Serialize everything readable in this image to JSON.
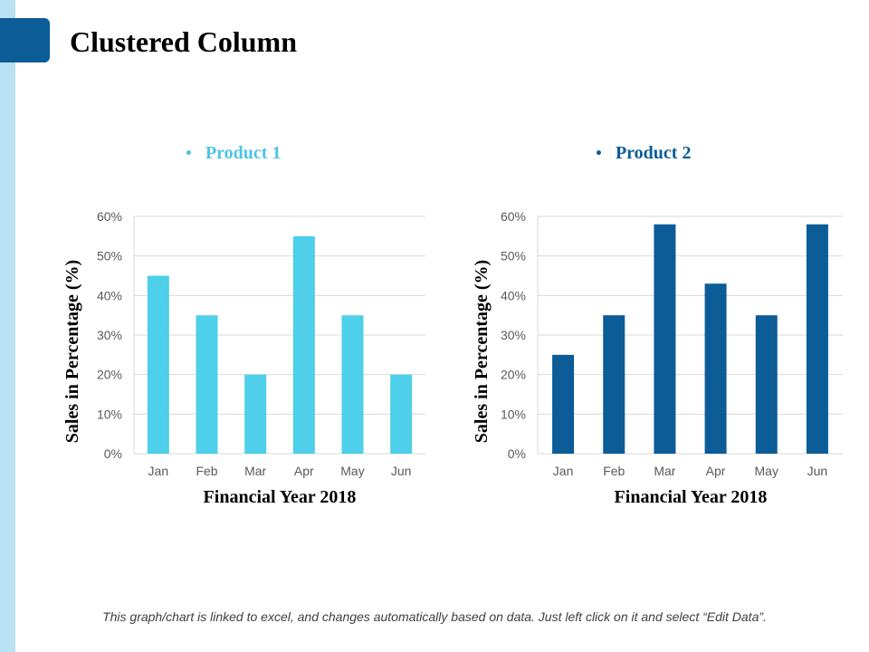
{
  "page": {
    "title": "Clustered Column",
    "footnote": "This graph/chart is linked to excel, and changes automatically based on data. Just left click on it and select “Edit Data”."
  },
  "colors": {
    "accent_dark": "#0b5c97",
    "accent_light_strip": "#b8e2f2",
    "product1": "#4ecfea",
    "product1_legend": "#4ec3e6",
    "product2": "#0b5c97",
    "gridline": "#d9d9d9",
    "tick_text": "#595959"
  },
  "legend_bullet": "•",
  "chart_data": [
    {
      "type": "bar",
      "legend": "Product 1",
      "categories": [
        "Jan",
        "Feb",
        "Mar",
        "Apr",
        "May",
        "Jun"
      ],
      "values": [
        45,
        35,
        20,
        55,
        35,
        20
      ],
      "xlabel": "Financial Year 2018",
      "ylabel": "Sales in Percentage (%)",
      "ylim": [
        0,
        60
      ],
      "yticks": [
        "0%",
        "10%",
        "20%",
        "30%",
        "40%",
        "50%",
        "60%"
      ],
      "grid": true,
      "color": "#4ecfea"
    },
    {
      "type": "bar",
      "legend": "Product 2",
      "categories": [
        "Jan",
        "Feb",
        "Mar",
        "Apr",
        "May",
        "Jun"
      ],
      "values": [
        25,
        35,
        58,
        43,
        35,
        58
      ],
      "xlabel": "Financial Year 2018",
      "ylabel": "Sales in Percentage (%)",
      "ylim": [
        0,
        60
      ],
      "yticks": [
        "0%",
        "10%",
        "20%",
        "30%",
        "40%",
        "50%",
        "60%"
      ],
      "grid": true,
      "color": "#0b5c97"
    }
  ]
}
